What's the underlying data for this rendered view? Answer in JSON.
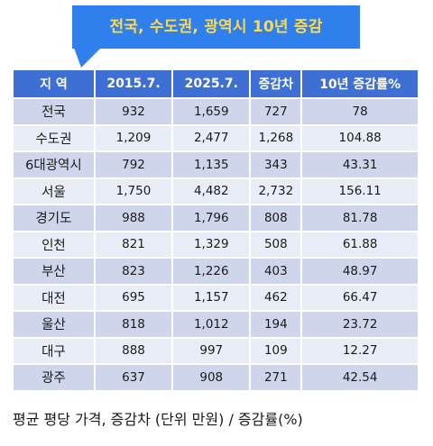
{
  "title": "전국, 수도권, 광역시 10년 증감",
  "table": {
    "headers": [
      "지 역",
      "2015.7.",
      "2025.7.",
      "증감차",
      "10년 증감률%"
    ],
    "rows": [
      [
        "전국",
        "932",
        "1,659",
        "727",
        "78"
      ],
      [
        "수도권",
        "1,209",
        "2,477",
        "1,268",
        "104.88"
      ],
      [
        "6대광역시",
        "792",
        "1,135",
        "343",
        "43.31"
      ],
      [
        "서울",
        "1,750",
        "4,482",
        "2,732",
        "156.11"
      ],
      [
        "경기도",
        "988",
        "1,796",
        "808",
        "81.78"
      ],
      [
        "인천",
        "821",
        "1,329",
        "508",
        "61.88"
      ],
      [
        "부산",
        "823",
        "1,226",
        "403",
        "48.97"
      ],
      [
        "대전",
        "695",
        "1,157",
        "462",
        "66.47"
      ],
      [
        "울산",
        "818",
        "1,012",
        "194",
        "23.72"
      ],
      [
        "대구",
        "888",
        "997",
        "109",
        "12.27"
      ],
      [
        "광주",
        "637",
        "908",
        "271",
        "42.54"
      ]
    ]
  },
  "footnote": "평균 평당 가격, 증감차 (단위 만원) / 증감률(%)",
  "colors": {
    "callout_bg": "#2f80ed",
    "callout_text": "#ffd94a",
    "header_bg": "#3d6fd4",
    "row_odd": "#cfd6ec",
    "row_even": "#e9edf7"
  }
}
